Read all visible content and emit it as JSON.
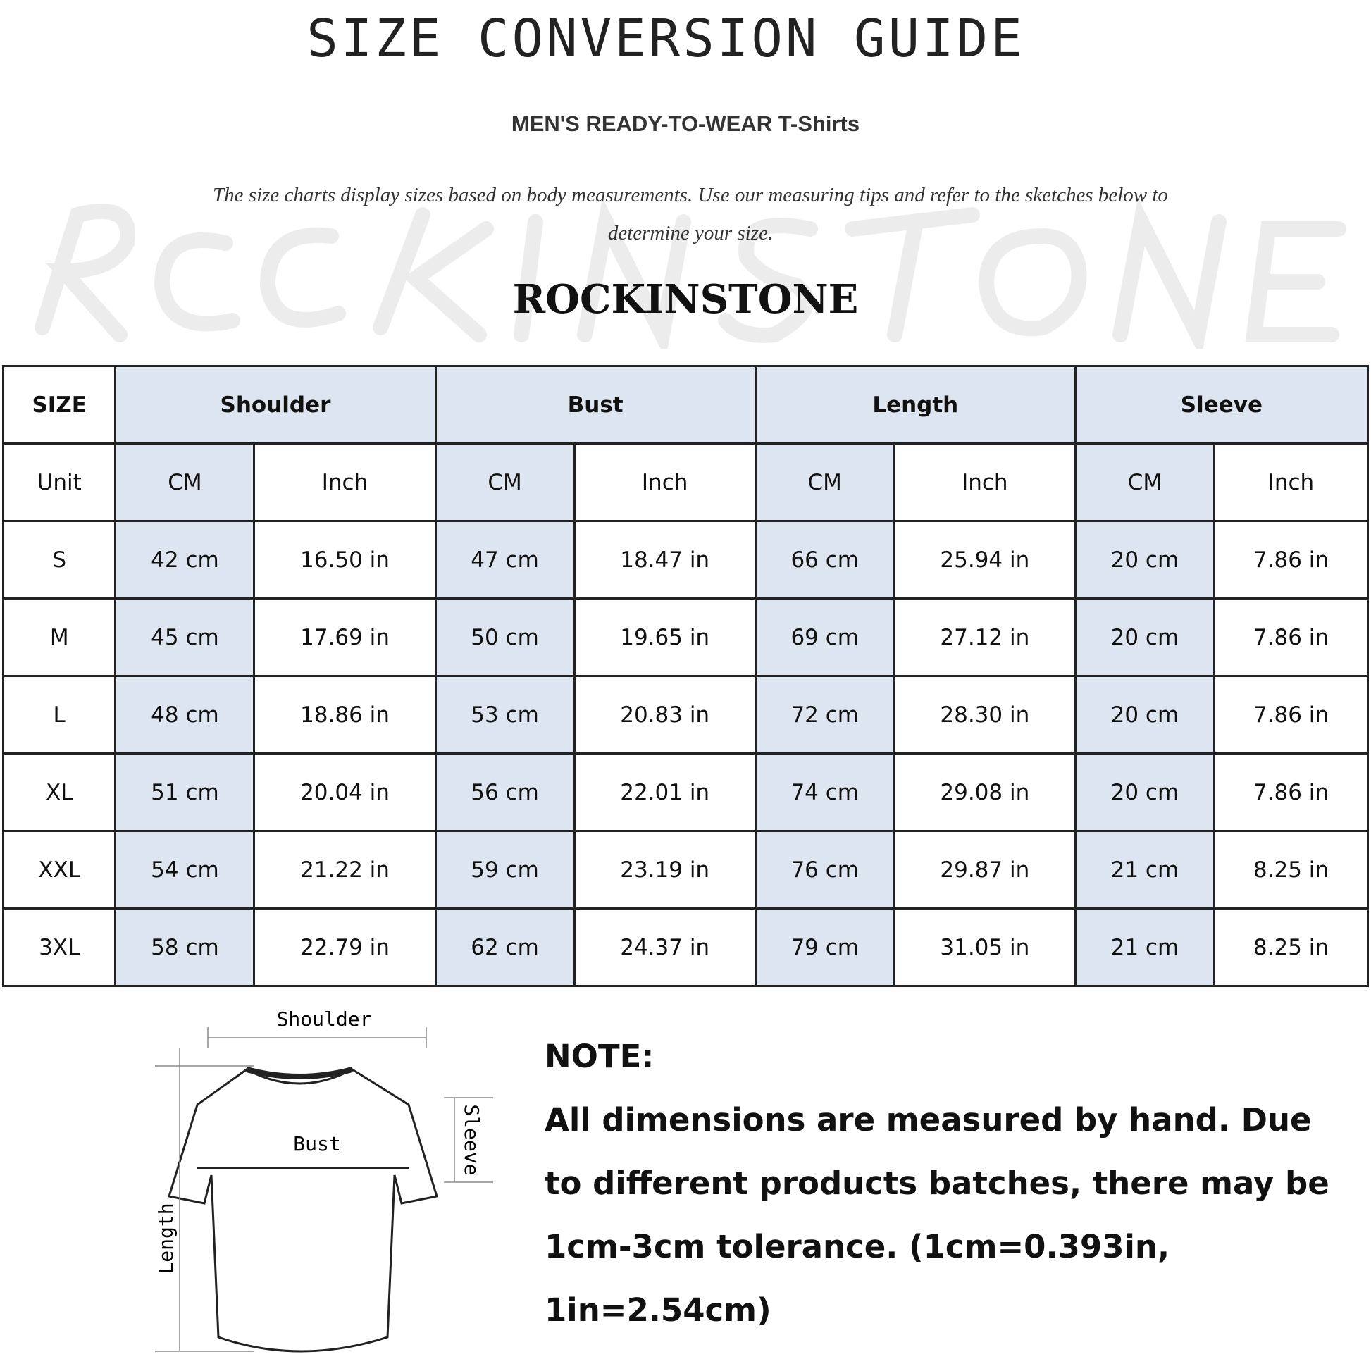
{
  "title": "SIZE CONVERSION GUIDE",
  "subtitle": "MEN'S READY-TO-WEAR T-Shirts",
  "description": "The size charts display sizes based on body measurements. Use our measuring tips and refer to the sketches below to determine your size.",
  "watermark": "ROCKINSTONE",
  "brand": "ROCKINSTONE",
  "table": {
    "header": [
      "SIZE",
      "Shoulder",
      "Bust",
      "Length",
      "Sleeve"
    ],
    "units": [
      "Unit",
      "CM",
      "Inch",
      "CM",
      "Inch",
      "CM",
      "Inch",
      "CM",
      "Inch"
    ],
    "rows": [
      [
        "S",
        "42 cm",
        "16.50 in",
        "47 cm",
        "18.47  in",
        "66 cm",
        "25.94  in",
        "20 cm",
        "7.86  in"
      ],
      [
        "M",
        "45 cm",
        "17.69  in",
        "50 cm",
        "19.65  in",
        "69 cm",
        "27.12  in",
        "20 cm",
        "7.86  in"
      ],
      [
        "L",
        "48 cm",
        "18.86  in",
        "53 cm",
        "20.83  in",
        "72 cm",
        "28.30  in",
        "20 cm",
        "7.86  in"
      ],
      [
        "XL",
        "51 cm",
        "20.04  in",
        "56 cm",
        "22.01  in",
        "74 cm",
        "29.08  in",
        "20 cm",
        "7.86  in"
      ],
      [
        "XXL",
        "54 cm",
        "21.22  in",
        "59 cm",
        "23.19  in",
        "76 cm",
        "29.87  in",
        "21 cm",
        "8.25  in"
      ],
      [
        "3XL",
        "58 cm",
        "22.79  in",
        "62 cm",
        "24.37  in",
        "79 cm",
        "31.05  in",
        "21 cm",
        "8.25  in"
      ]
    ]
  },
  "sketch": {
    "shoulder": "Shoulder",
    "bust": "Bust",
    "length": "Length",
    "sleeve": "Sleeve"
  },
  "note": {
    "heading": "NOTE:",
    "text": "All dimensions are measured by hand. Due to different products batches, there may be 1cm-3cm tolerance. (1cm=0.393in, 1in=2.54cm)"
  },
  "colors": {
    "header_cell": "#dde6f0",
    "border": "#222222"
  }
}
